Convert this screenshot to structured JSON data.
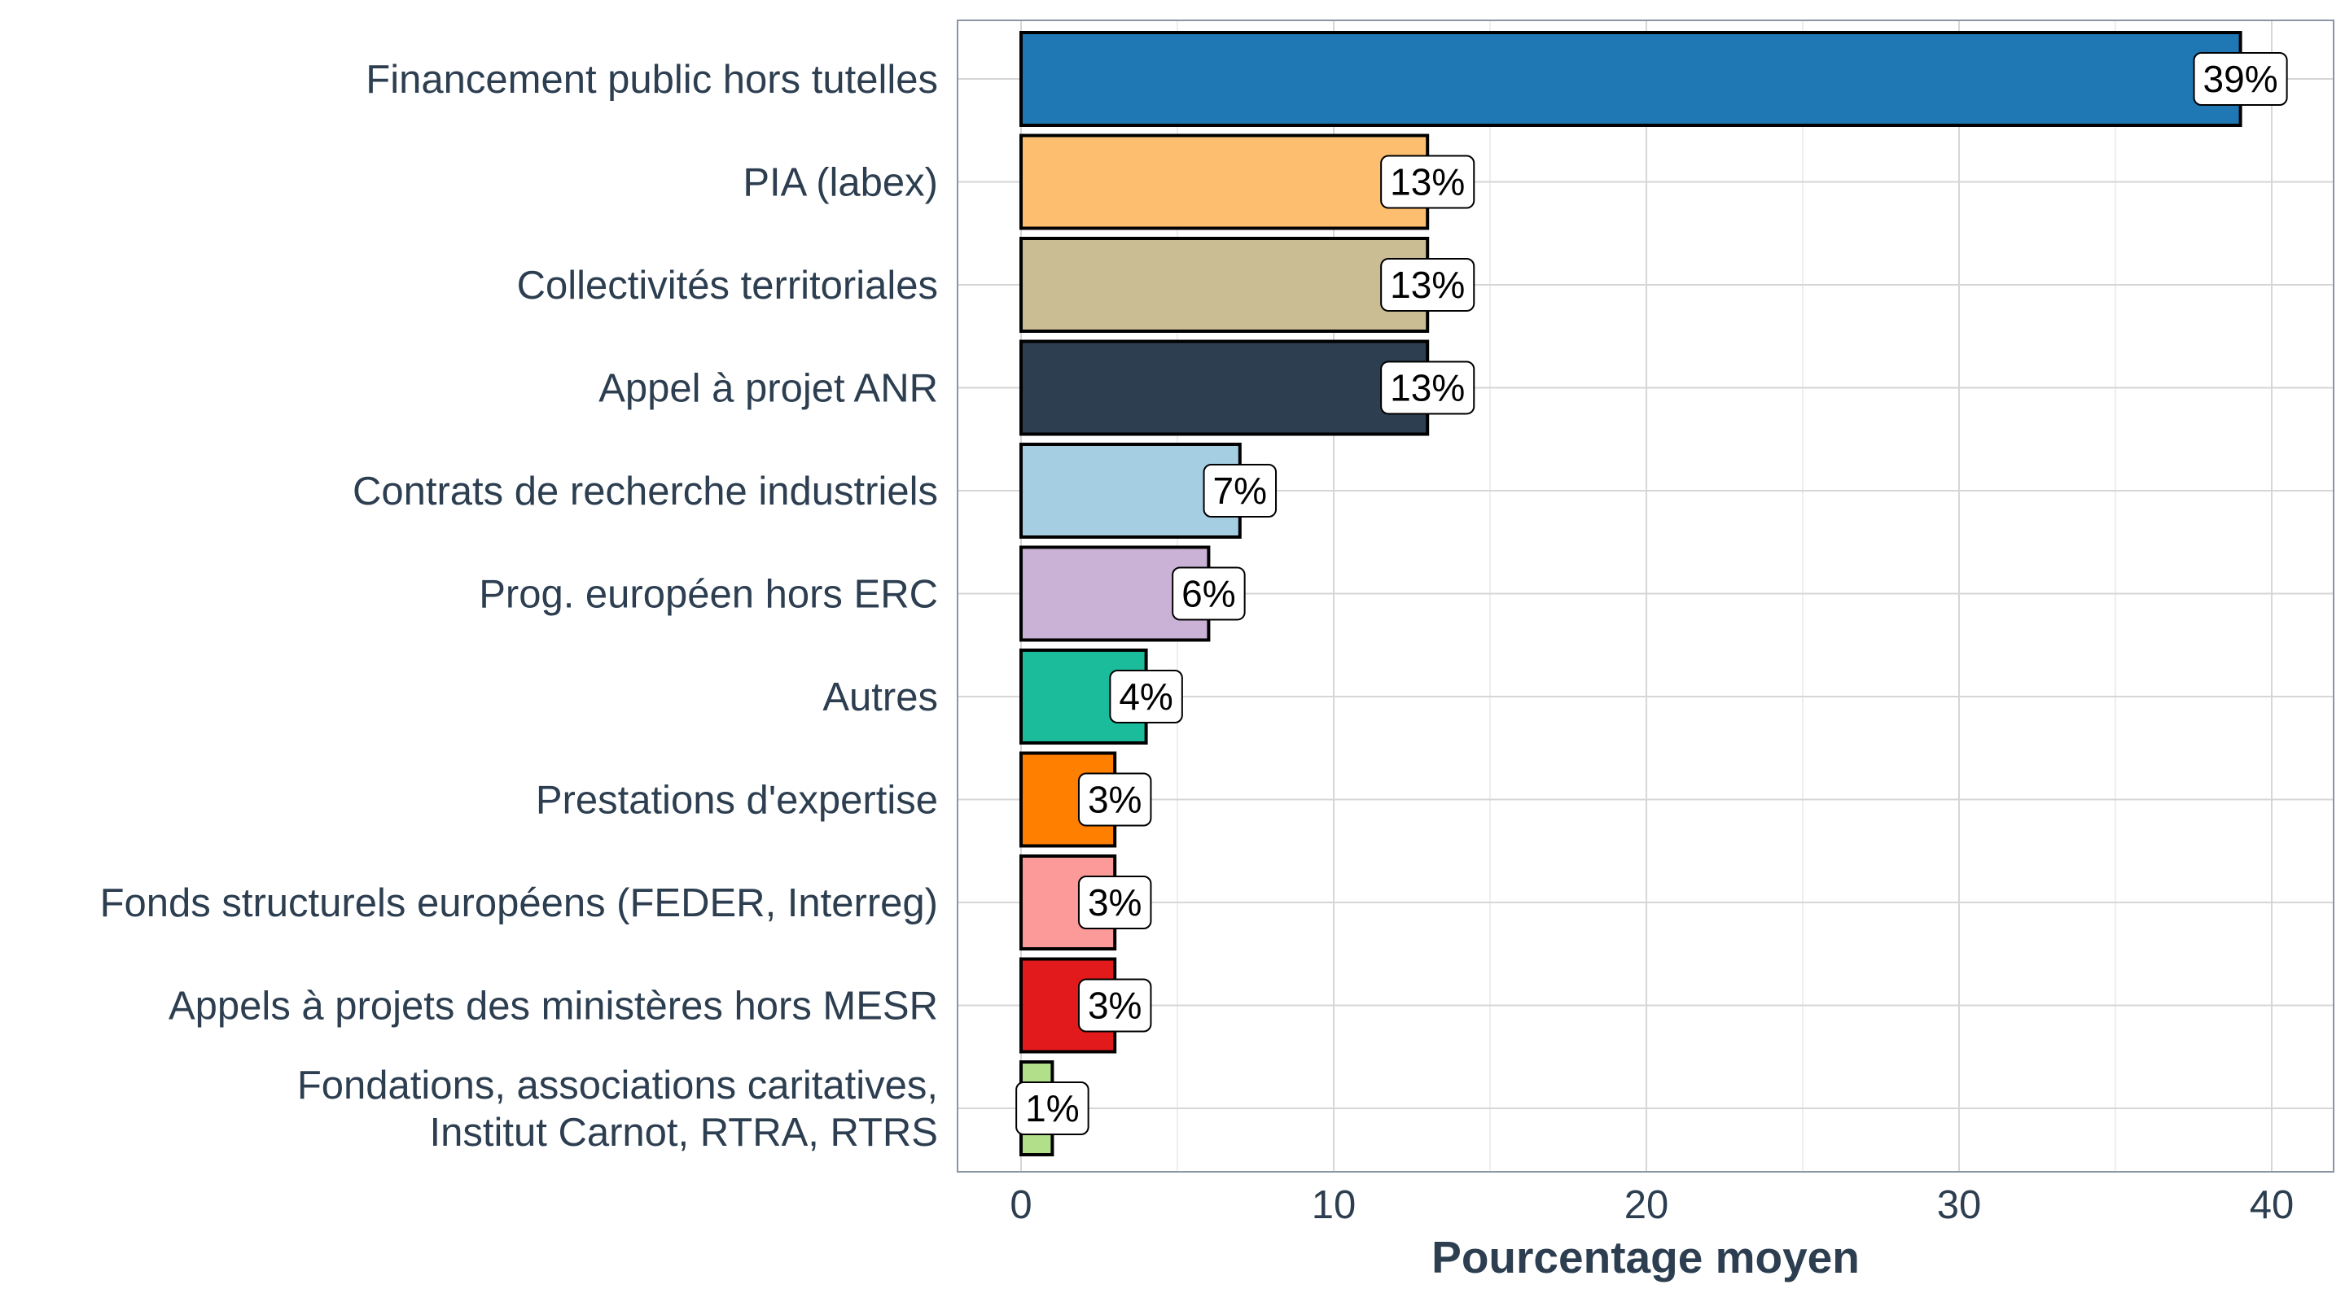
{
  "chart_data": {
    "type": "bar",
    "orientation": "horizontal",
    "categories": [
      [
        "Financement public hors tutelles"
      ],
      [
        "PIA (labex)"
      ],
      [
        "Collectivités territoriales"
      ],
      [
        "Appel à projet ANR"
      ],
      [
        "Contrats de recherche industriels"
      ],
      [
        "Prog. européen hors ERC"
      ],
      [
        "Autres"
      ],
      [
        "Prestations d'expertise"
      ],
      [
        "Fonds structurels européens (FEDER, Interreg)"
      ],
      [
        "Appels à projets des ministères hors MESR"
      ],
      [
        "Fondations, associations caritatives,",
        "Institut Carnot, RTRA, RTRS"
      ]
    ],
    "values": [
      39,
      13,
      13,
      13,
      7,
      6,
      4,
      3,
      3,
      3,
      1
    ],
    "data_labels": [
      "39%",
      "13%",
      "13%",
      "13%",
      "7%",
      "6%",
      "4%",
      "3%",
      "3%",
      "3%",
      "1%"
    ],
    "colors": [
      "#1f78b4",
      "#fdbf6f",
      "#cbbd93",
      "#2c3e50",
      "#a6cee3",
      "#cab2d6",
      "#1abc9c",
      "#ff7f00",
      "#fb9a99",
      "#e31a1c",
      "#b2df8a"
    ],
    "xlabel": "Pourcentage moyen",
    "ylabel": "",
    "xlim": [
      -2,
      40.8
    ],
    "xticks": [
      0,
      10,
      20,
      30,
      40
    ],
    "xtick_labels": [
      "0",
      "10",
      "20",
      "30",
      "40"
    ],
    "grid": true,
    "legend": "none"
  }
}
